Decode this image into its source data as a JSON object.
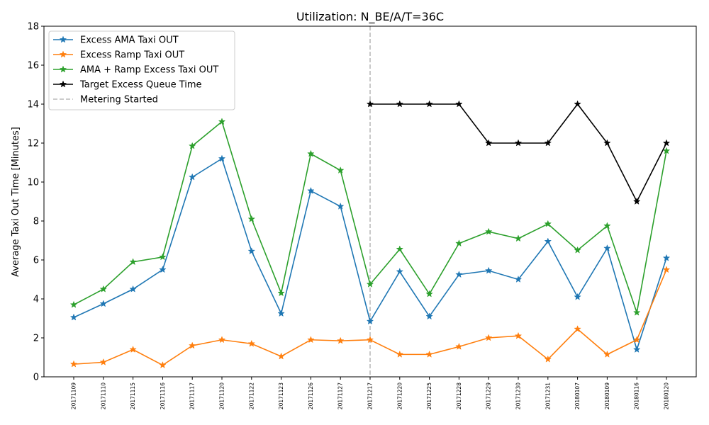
{
  "chart_data": {
    "type": "line",
    "title": "Utilization: N_BE/A/T=36C",
    "xlabel": "",
    "ylabel": "Average Taxi Out Time [Minutes]",
    "ylim": [
      0,
      18
    ],
    "yticks": [
      0,
      2,
      4,
      6,
      8,
      10,
      12,
      14,
      16,
      18
    ],
    "grid": false,
    "legend_position": "top-left",
    "categories": [
      "20171109",
      "20171110",
      "20171115",
      "20171116",
      "20171117",
      "20171120",
      "20171122",
      "20171123",
      "20171126",
      "20171127",
      "20171217",
      "20171220",
      "20171225",
      "20171228",
      "20171229",
      "20171230",
      "20171231",
      "20180107",
      "20180109",
      "20180116",
      "20180120"
    ],
    "series": [
      {
        "name": "Excess AMA Taxi OUT",
        "color": "#1f77b4",
        "marker": "star",
        "values": [
          3.05,
          3.75,
          4.5,
          5.5,
          10.25,
          11.2,
          6.45,
          3.25,
          9.55,
          8.75,
          2.85,
          5.4,
          3.1,
          5.25,
          5.45,
          5.0,
          6.95,
          4.1,
          6.6,
          1.4,
          6.1
        ]
      },
      {
        "name": "Excess Ramp Taxi OUT",
        "color": "#ff7f0e",
        "marker": "star",
        "values": [
          0.65,
          0.75,
          1.4,
          0.6,
          1.6,
          1.9,
          1.7,
          1.05,
          1.9,
          1.85,
          1.9,
          1.15,
          1.15,
          1.55,
          2.0,
          2.1,
          0.9,
          2.45,
          1.15,
          1.9,
          5.5
        ]
      },
      {
        "name": "AMA + Ramp Excess Taxi OUT",
        "color": "#2ca02c",
        "marker": "star",
        "values": [
          3.7,
          4.5,
          5.9,
          6.15,
          11.85,
          13.1,
          8.1,
          4.3,
          11.45,
          10.6,
          4.75,
          6.55,
          4.25,
          6.85,
          7.45,
          7.1,
          7.85,
          6.5,
          7.75,
          3.3,
          11.6
        ]
      },
      {
        "name": "Target Excess Queue Time",
        "color": "#000000",
        "marker": "star",
        "values": [
          null,
          null,
          null,
          null,
          null,
          null,
          null,
          null,
          null,
          null,
          14,
          14,
          14,
          14,
          12,
          12,
          12,
          14,
          12,
          9,
          12
        ]
      }
    ],
    "annotations": [
      {
        "name": "Metering Started",
        "type": "vline",
        "x": "20171217",
        "color": "#bbbbbb",
        "style": "dashed"
      }
    ]
  }
}
